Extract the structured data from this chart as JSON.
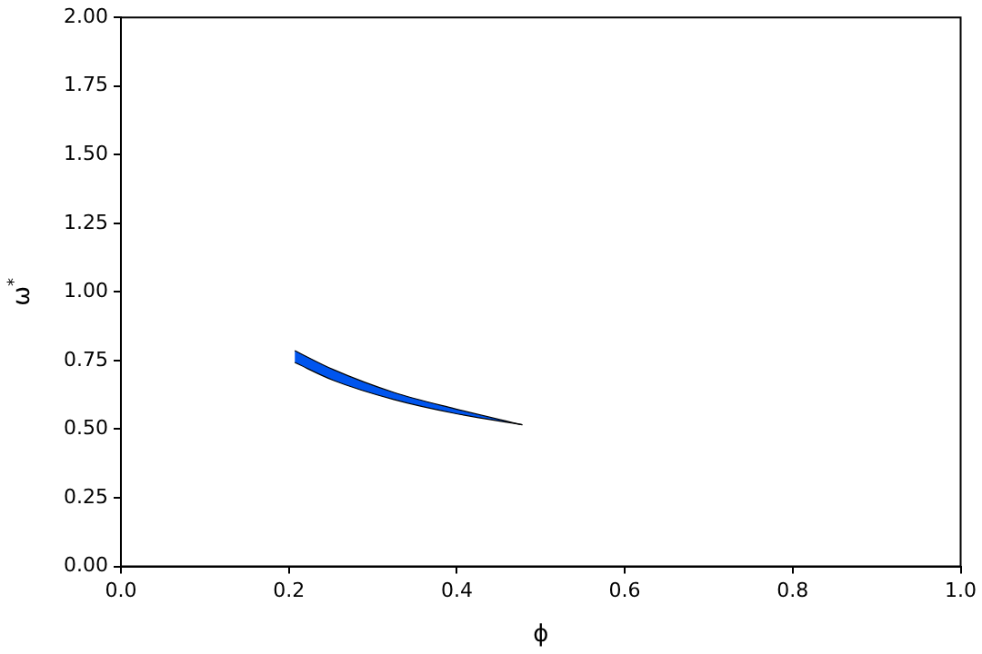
{
  "chart_data": {
    "type": "area",
    "xlabel": "ϕ",
    "ylabel": "ω$^{*}$",
    "x": [
      0.207,
      0.253,
      0.325,
      0.397,
      0.478
    ],
    "series": [
      {
        "type": "line",
        "color": "#000000",
        "values": [
          0.743,
          0.678,
          0.608,
          0.558,
          0.516
        ]
      },
      {
        "color": "#0055ee",
        "values": [
          0.786,
          0.717,
          0.634,
          0.575,
          0.516
        ]
      }
    ],
    "xlim": [
      0,
      1
    ],
    "ylim": [
      0,
      2
    ],
    "xticks": [
      {
        "value": 0,
        "label": "0.0"
      },
      {
        "value": 0.2,
        "label": "0.2"
      },
      {
        "value": 0.4,
        "label": "0.4"
      },
      {
        "value": 0.6,
        "label": "0.6"
      },
      {
        "value": 0.8,
        "label": "0.8"
      },
      {
        "value": 1,
        "label": "1.0"
      }
    ],
    "yticks": [
      {
        "value": 0,
        "label": "0.00"
      },
      {
        "value": 0.25,
        "label": "0.25"
      },
      {
        "value": 0.5,
        "label": "0.50"
      },
      {
        "value": 0.75,
        "label": "0.75"
      },
      {
        "value": 1,
        "label": "1.00"
      },
      {
        "value": 1.25,
        "label": "1.25"
      },
      {
        "value": 1.5,
        "label": "1.50"
      },
      {
        "value": 1.75,
        "label": "1.75"
      },
      {
        "value": 2,
        "label": "2.00"
      }
    ],
    "grid": false
  }
}
